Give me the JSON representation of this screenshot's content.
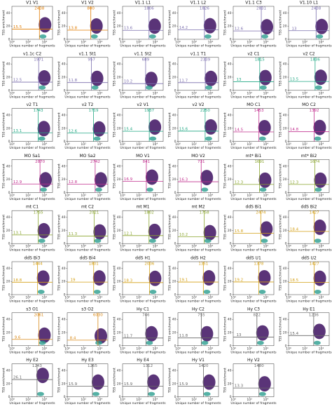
{
  "shared": {
    "x_label": "Unique number of fragments",
    "y_label": "TSS enrichment",
    "x_log": true,
    "xlim": [
      1,
      100000
    ],
    "xticks": [
      {
        "value": 1,
        "label": "10⁰"
      },
      {
        "value": 100,
        "label": "10²"
      },
      {
        "value": 10000,
        "label": "10⁴"
      }
    ],
    "ylim": [
      0,
      50
    ],
    "yticks": [
      0,
      20,
      40
    ]
  },
  "chart_data": [
    {
      "type": "scatter",
      "title": "V1 V1",
      "x_threshold": 2438,
      "y_threshold": 15.5,
      "color": "#e07b00"
    },
    {
      "type": "scatter",
      "title": "V1 V2",
      "x_threshold": 800,
      "y_threshold": 13.8,
      "color": "#e07b00"
    },
    {
      "type": "scatter",
      "title": "V1.1 L1",
      "x_threshold": 1806,
      "y_threshold": 13.6,
      "color": "#7b6fae"
    },
    {
      "type": "scatter",
      "title": "V1.1 L2",
      "x_threshold": 1826,
      "y_threshold": 14.2,
      "color": "#7b6fae"
    },
    {
      "type": "scatter",
      "title": "V1.1 C3",
      "x_threshold": 2831,
      "y_threshold": 12.6,
      "color": "#7b6fae"
    },
    {
      "type": "scatter",
      "title": "V1.10 L1",
      "x_threshold": 2438,
      "y_threshold": 13.0,
      "color": "#7b6fae"
    },
    {
      "type": "scatter",
      "title": "v1.1c C2",
      "x_threshold": 1971,
      "y_threshold": 12.5,
      "color": "#7b6fae"
    },
    {
      "type": "scatter",
      "title": "v1.1 St1",
      "x_threshold": 957,
      "y_threshold": 11.8,
      "color": "#7b6fae"
    },
    {
      "type": "scatter",
      "title": "v1.1 St2",
      "x_threshold": 689,
      "y_threshold": 10.2,
      "color": "#7b6fae"
    },
    {
      "type": "scatter",
      "title": "v1.1 T1",
      "x_threshold": 2339,
      "y_threshold": 11.7,
      "color": "#7b6fae"
    },
    {
      "type": "scatter",
      "title": "v2 C1",
      "x_threshold": 1815,
      "y_threshold": 13.0,
      "color": "#22a884"
    },
    {
      "type": "scatter",
      "title": "v2 C2",
      "x_threshold": 1836,
      "y_threshold": 13.5,
      "color": "#22a884"
    },
    {
      "type": "scatter",
      "title": "v2 T1",
      "x_threshold": 1743,
      "y_threshold": 13.1,
      "color": "#22a884"
    },
    {
      "type": "scatter",
      "title": "v2 T2",
      "x_threshold": 1719,
      "y_threshold": 12.6,
      "color": "#22a884"
    },
    {
      "type": "scatter",
      "title": "v2 V1",
      "x_threshold": 1937,
      "y_threshold": 15.4,
      "color": "#22a884"
    },
    {
      "type": "scatter",
      "title": "v2 V2",
      "x_threshold": 2250,
      "y_threshold": 15.6,
      "color": "#22a884"
    },
    {
      "type": "scatter",
      "title": "MO C1",
      "x_threshold": 1453,
      "y_threshold": 14.5,
      "color": "#c2308f"
    },
    {
      "type": "scatter",
      "title": "MO C2",
      "x_threshold": 1392,
      "y_threshold": 14.8,
      "color": "#c2308f"
    },
    {
      "type": "scatter",
      "title": "MO Sa1",
      "x_threshold": 2870,
      "y_threshold": 12.9,
      "color": "#c2308f"
    },
    {
      "type": "scatter",
      "title": "MO Sa2",
      "x_threshold": 2742,
      "y_threshold": 12.8,
      "color": "#c2308f"
    },
    {
      "type": "scatter",
      "title": "MO V1",
      "x_threshold": 841,
      "y_threshold": 16.9,
      "color": "#c2308f"
    },
    {
      "type": "scatter",
      "title": "MO V2",
      "x_threshold": 731,
      "y_threshold": 16.3,
      "color": "#c2308f"
    },
    {
      "type": "scatter",
      "title": "mt* Bi1",
      "x_threshold": 1691,
      "y_threshold": 12.3,
      "color": "#8aa52e"
    },
    {
      "type": "scatter",
      "title": "mt* Bi2",
      "x_threshold": 1674,
      "y_threshold": 12.3,
      "color": "#8aa52e"
    },
    {
      "type": "scatter",
      "title": "mt C1",
      "x_threshold": 1755,
      "y_threshold": 13.1,
      "color": "#8aa52e"
    },
    {
      "type": "scatter",
      "title": "mt C2",
      "x_threshold": 2021,
      "y_threshold": 11.3,
      "color": "#8aa52e"
    },
    {
      "type": "scatter",
      "title": "mt M1",
      "x_threshold": 1802,
      "y_threshold": 12.1,
      "color": "#8aa52e"
    },
    {
      "type": "scatter",
      "title": "mt M2",
      "x_threshold": 1758,
      "y_threshold": 10.2,
      "color": "#8aa52e"
    },
    {
      "type": "scatter",
      "title": "ddS Bi1",
      "x_threshold": 2474,
      "y_threshold": 15.8,
      "color": "#d4a017"
    },
    {
      "type": "scatter",
      "title": "ddS Bi2",
      "x_threshold": 1427,
      "y_threshold": 18.4,
      "color": "#d4a017"
    },
    {
      "type": "scatter",
      "title": "ddS Bi3",
      "x_threshold": 1444,
      "y_threshold": 18.8,
      "color": "#d4a017"
    },
    {
      "type": "scatter",
      "title": "ddS Bi4",
      "x_threshold": 1801,
      "y_threshold": 19.0,
      "color": "#d4a017"
    },
    {
      "type": "scatter",
      "title": "ddS H1",
      "x_threshold": 2036,
      "y_threshold": 18.3,
      "color": "#d4a017"
    },
    {
      "type": "scatter",
      "title": "ddS H2",
      "x_threshold": 1351,
      "y_threshold": 19.1,
      "color": "#d4a017"
    },
    {
      "type": "scatter",
      "title": "ddS U1",
      "x_threshold": 1378,
      "y_threshold": 19.2,
      "color": "#d4a017"
    },
    {
      "type": "scatter",
      "title": "ddS U2",
      "x_threshold": 1427,
      "y_threshold": 18.5,
      "color": "#d4a017"
    },
    {
      "type": "scatter",
      "title": "s3 O1",
      "x_threshold": 2061,
      "y_threshold": 9.6,
      "color": "#d98a1a"
    },
    {
      "type": "scatter",
      "title": "s3 O2",
      "x_threshold": 6030,
      "y_threshold": 8.4,
      "color": "#d98a1a"
    },
    {
      "type": "scatter",
      "title": "Hy C1",
      "x_threshold": 746,
      "y_threshold": 11.7,
      "color": "#666666"
    },
    {
      "type": "scatter",
      "title": "Hy C2",
      "x_threshold": 755,
      "y_threshold": 11.8,
      "color": "#666666"
    },
    {
      "type": "scatter",
      "title": "Hy C3",
      "x_threshold": 822,
      "y_threshold": 13.0,
      "color": "#666666"
    },
    {
      "type": "scatter",
      "title": "Hy E1",
      "x_threshold": 1236,
      "y_threshold": 15.4,
      "color": "#666666"
    },
    {
      "type": "scatter",
      "title": "Hy E2",
      "x_threshold": 1243,
      "y_threshold": 26.1,
      "color": "#666666"
    },
    {
      "type": "scatter",
      "title": "Hy E3",
      "x_threshold": 1265,
      "y_threshold": 15.9,
      "color": "#666666"
    },
    {
      "type": "scatter",
      "title": "Hy E4",
      "x_threshold": 1312,
      "y_threshold": 15.9,
      "color": "#666666"
    },
    {
      "type": "scatter",
      "title": "Hy V1",
      "x_threshold": 1420,
      "y_threshold": 15.9,
      "color": "#666666"
    },
    {
      "type": "scatter",
      "title": "Hy V2",
      "x_threshold": 1480,
      "y_threshold": 13.3,
      "color": "#666666"
    }
  ]
}
